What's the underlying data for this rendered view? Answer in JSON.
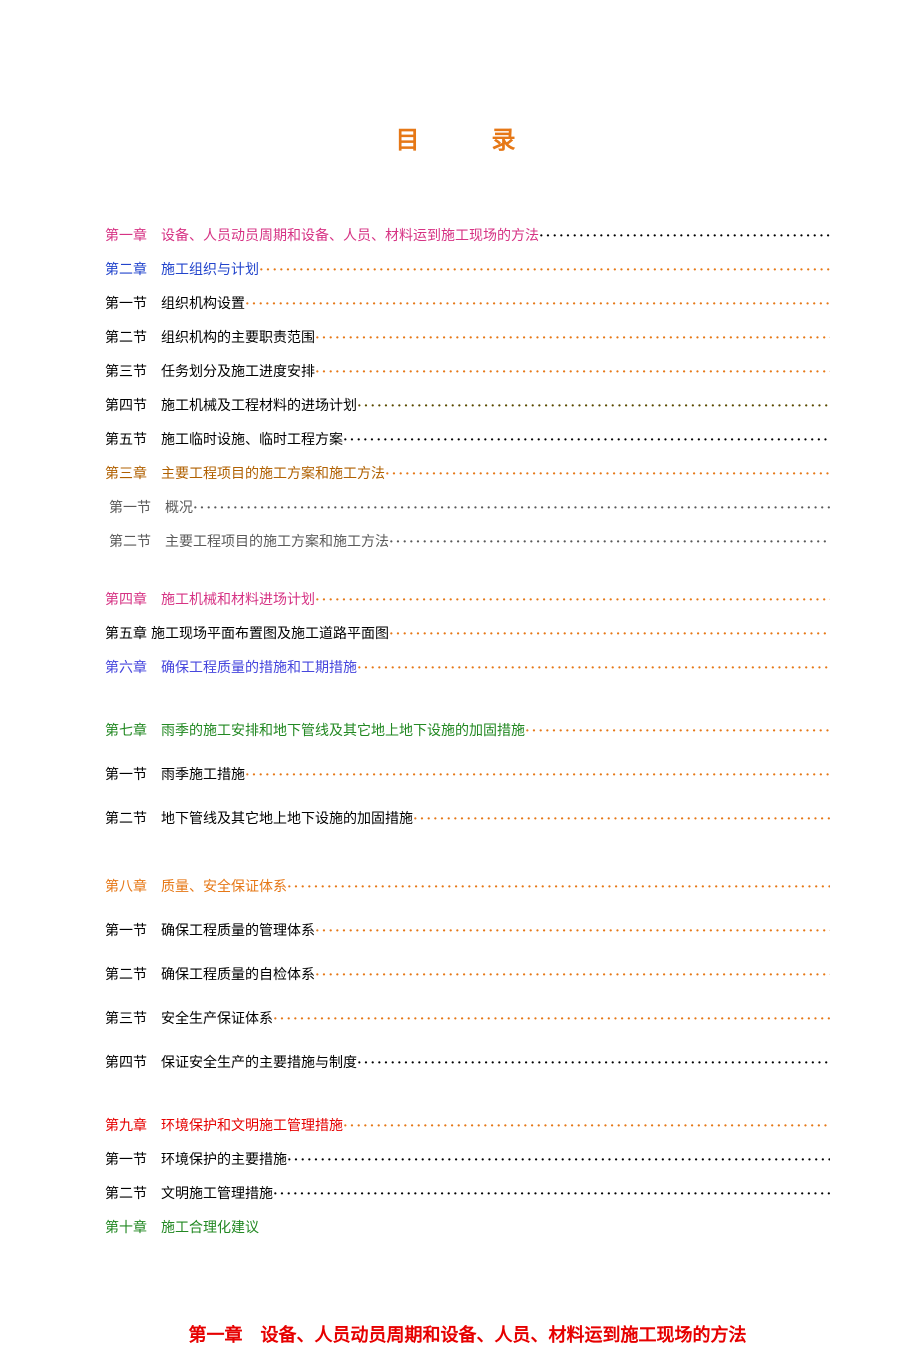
{
  "title": "目　录",
  "title_color": "#e67817",
  "dot_char": "·",
  "entries": [
    {
      "label": "第一章",
      "text": "设备、人员动员周期和设备、人员、材料运到施工现场的方法",
      "label_color": "#d63384",
      "text_color": "#d63384",
      "dots_color": "#000000",
      "line_height": 24
    },
    {
      "label": "第二章",
      "text": "施工组织与计划",
      "label_color": "#2244cc",
      "text_color": "#2244cc",
      "dots_color": "#e67817",
      "line_height": 24
    },
    {
      "label": "第一节",
      "text": "组织机构设置",
      "label_color": "#000000",
      "text_color": "#000000",
      "dots_color": "#e67817",
      "line_height": 24
    },
    {
      "label": "第二节",
      "text": "组织机构的主要职责范围",
      "label_color": "#000000",
      "text_color": "#000000",
      "dots_color": "#e67817",
      "line_height": 24
    },
    {
      "label": "第三节",
      "text": "任务划分及施工进度安排",
      "label_color": "#000000",
      "text_color": "#000000",
      "dots_color": "#e67817",
      "line_height": 24
    },
    {
      "label": "第四节",
      "text": "施工机械及工程材料的进场计划",
      "label_color": "#000000",
      "text_color": "#000000",
      "dots_color": "#5a4a00",
      "line_height": 24
    },
    {
      "label": "第五节",
      "text": "施工临时设施、临时工程方案",
      "label_color": "#000000",
      "text_color": "#000000",
      "dots_color": "#000000",
      "line_height": 24
    },
    {
      "label": "第三章",
      "text": "主要工程项目的施工方案和施工方法",
      "label_color": "#b06000",
      "text_color": "#b06000",
      "dots_color": "#e67817",
      "line_height": 24
    },
    {
      "label": "第一节",
      "text": "概况",
      "label_color": "#5a5a5a",
      "text_color": "#5a5a5a",
      "dots_color": "#5a5a5a",
      "line_height": 24,
      "indent": 4
    },
    {
      "label": "第二节",
      "text": "主要工程项目的施工方案和施工方法",
      "label_color": "#5a5a5a",
      "text_color": "#5a5a5a",
      "dots_color": "#5a5a5a",
      "line_height": 24,
      "indent": 4
    },
    {
      "gap": true
    },
    {
      "label": "第四章",
      "text": "施工机械和材料进场计划",
      "label_color": "#d63384",
      "text_color": "#d63384",
      "dots_color": "#e67817",
      "line_height": 24
    },
    {
      "label": "第五章",
      "text": "施工现场平面布置图及施工道路平面图",
      "label_color": "#000000",
      "text_color": "#000000",
      "dots_color": "#e67817",
      "line_height": 24,
      "label_pad": 4
    },
    {
      "label": "第六章",
      "text": "确保工程质量的措施和工期措施",
      "label_color": "#4646dd",
      "text_color": "#4646dd",
      "dots_color": "#e67817",
      "line_height": 24
    },
    {
      "gap": true
    },
    {
      "label": "第七章",
      "text": "雨季的施工安排和地下管线及其它地上地下设施的加固措施",
      "label_color": "#228822",
      "text_color": "#228822",
      "dots_color": "#e67817",
      "line_height": 34
    },
    {
      "label": "第一节",
      "text": "雨季施工措施",
      "label_color": "#000000",
      "text_color": "#000000",
      "dots_color": "#e67817",
      "line_height": 34
    },
    {
      "label": "第二节",
      "text": "地下管线及其它地上地下设施的加固措施",
      "label_color": "#000000",
      "text_color": "#000000",
      "dots_color": "#e67817",
      "line_height": 34
    },
    {
      "gap": true
    },
    {
      "label": "第八章",
      "text": "质量、安全保证体系",
      "label_color": "#e67817",
      "text_color": "#e67817",
      "dots_color": "#e67817",
      "line_height": 34
    },
    {
      "label": "第一节",
      "text": "确保工程质量的管理体系",
      "label_color": "#000000",
      "text_color": "#000000",
      "dots_color": "#e67817",
      "line_height": 34
    },
    {
      "label": "第二节",
      "text": "确保工程质量的自检体系",
      "label_color": "#000000",
      "text_color": "#000000",
      "dots_color": "#e67817",
      "line_height": 34
    },
    {
      "label": "第三节",
      "text": "安全生产保证体系",
      "label_color": "#000000",
      "text_color": "#000000",
      "dots_color": "#e67817",
      "line_height": 34
    },
    {
      "label": "第四节",
      "text": "保证安全生产的主要措施与制度",
      "label_color": "#000000",
      "text_color": "#000000",
      "dots_color": "#000000",
      "line_height": 34
    },
    {
      "gap": true
    },
    {
      "label": "第九章",
      "text": "环境保护和文明施工管理措施",
      "label_color": "#e60000",
      "text_color": "#e60000",
      "dots_color": "#e67817",
      "line_height": 24
    },
    {
      "label": "第一节",
      "text": "环境保护的主要措施",
      "label_color": "#000000",
      "text_color": "#000000",
      "dots_color": "#000000",
      "line_height": 24
    },
    {
      "label": "第二节",
      "text": "文明施工管理措施",
      "label_color": "#000000",
      "text_color": "#000000",
      "dots_color": "#000000",
      "line_height": 24
    },
    {
      "label": "第十章",
      "text": "施工合理化建议",
      "label_color": "#228822",
      "text_color": "#228822",
      "no_dots": true,
      "line_height": 24
    }
  ],
  "bottom_heading": "第一章　设备、人员动员周期和设备、人员、材料运到施工现场的方法",
  "bottom_heading_color": "#e60000"
}
